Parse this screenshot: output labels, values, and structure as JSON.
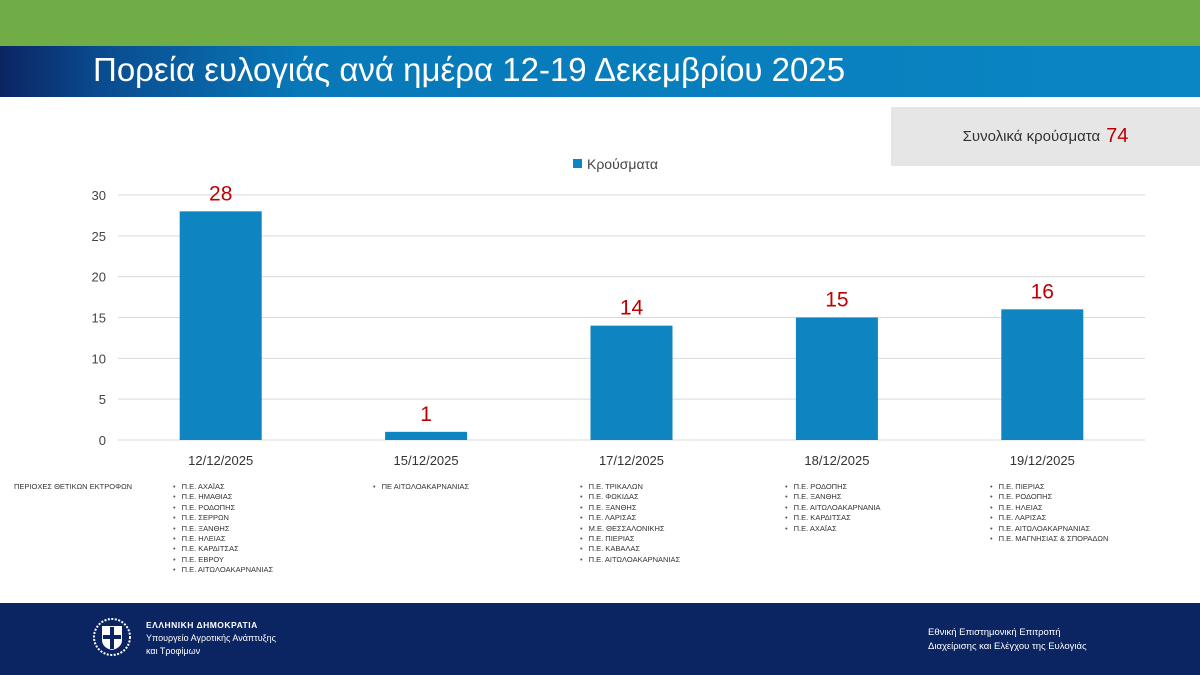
{
  "header": {
    "title": "Πορεία ευλογιάς ανά ημέρα 12-19 Δεκεμβρίου 2025"
  },
  "summary": {
    "label": "Συνολικά κρούσματα",
    "value": "74"
  },
  "colors": {
    "bar": "#0e84c0",
    "label": "#c00000",
    "green_band": "#70ad47",
    "footer": "#0b2462"
  },
  "chart_data": {
    "type": "bar",
    "categories": [
      "12/12/2025",
      "15/12/2025",
      "17/12/2025",
      "18/12/2025",
      "19/12/2025"
    ],
    "series": [
      {
        "name": "Κρούσματα",
        "values": [
          28,
          1,
          14,
          15,
          16
        ]
      }
    ],
    "ylim": [
      0,
      30
    ],
    "yticks": [
      0,
      5,
      10,
      15,
      20,
      25,
      30
    ],
    "grid": true,
    "legend": "top-center",
    "data_labels": true
  },
  "regions": {
    "label": "ΠΕΡΙΟΧΕΣ ΘΕΤΙΚΩΝ ΕΚΤΡΟΦΩΝ",
    "lists": [
      [
        "Π.Ε. ΑΧΑΪΑΣ",
        "Π.Ε. ΗΜΑΘΙΑΣ",
        "Π.Ε. ΡΟΔΟΠΗΣ",
        "Π.Ε. ΣΕΡΡΩΝ",
        "Π.Ε. ΞΑΝΘΗΣ",
        "Π.Ε. ΗΛΕΙΑΣ",
        "Π.Ε. ΚΑΡΔΙΤΣΑΣ",
        "Π.Ε. ΕΒΡΟΥ",
        "Π.Ε. ΑΙΤΩΛΟΑΚΑΡΝΑΝΙΑΣ"
      ],
      [
        "ΠΕ ΑΙΤΩΛΟΑΚΑΡΝΑΝΙΑΣ"
      ],
      [
        "Π.Ε. ΤΡΙΚΑΛΩΝ",
        "Π.Ε. ΦΩΚΙΔΑΣ",
        "Π.Ε. ΞΑΝΘΗΣ",
        "Π.Ε. ΛΑΡΙΣΑΣ",
        "Μ.Ε. ΘΕΣΣΑΛΟΝΙΚΗΣ",
        "Π.Ε. ΠΙΕΡΙΑΣ",
        "Π.Ε. ΚΑΒΑΛΑΣ",
        "Π.Ε. ΑΙΤΩΛΟΑΚΑΡΝΑΝΙΑΣ"
      ],
      [
        "Π.Ε. ΡΟΔΟΠΗΣ",
        "Π.Ε. ΞΑΝΘΗΣ",
        "Π.Ε. ΑΙΤΩΛΟΑΚΑΡΝΑΝΙΑ",
        "Π.Ε. ΚΑΡΔΙΤΣΑΣ",
        "Π.Ε. ΑΧΑΪΑΣ"
      ],
      [
        "Π.Ε. ΠΙΕΡΙΑΣ",
        "Π.Ε. ΡΟΔΟΠΗΣ",
        "Π.Ε. ΗΛΕΙΑΣ",
        "Π.Ε. ΛΑΡΙΣΑΣ",
        "Π.Ε. ΑΙΤΩΛΟΑΚΑΡΝΑΝΙΑΣ",
        "Π.Ε. ΜΑΓΝΗΣΙΑΣ & ΣΠΟΡΑΔΩΝ"
      ]
    ]
  },
  "footer": {
    "gov_line1": "ΕΛΛΗΝΙΚΗ ΔΗΜΟΚΡΑΤΙΑ",
    "gov_line2": "Υπουργείο Αγροτικής Ανάπτυξης",
    "gov_line3": "και Τροφίμων",
    "committee_line1": "Εθνική Επιστημονική Επιτροπή",
    "committee_line2": "Διαχείρισης και Ελέγχου της Ευλογιάς"
  }
}
